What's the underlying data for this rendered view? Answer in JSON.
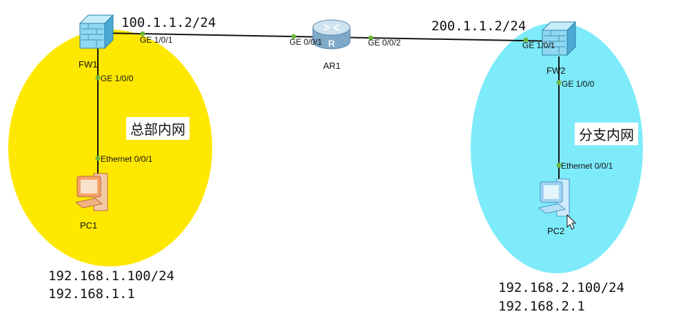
{
  "colors": {
    "hq_zone": "#FFE800",
    "branch_zone": "#7DEBFA",
    "link": "#111111",
    "port_dot": "#6BB83A",
    "firewall_fill": "#8FD8F2",
    "router_fill": "#A9C8E0",
    "pc1_fill": "#F4A36A",
    "pc2_fill": "#9ED3F2"
  },
  "devices": {
    "fw1": {
      "name": "FW1",
      "icon": "firewall-icon"
    },
    "fw2": {
      "name": "FW2",
      "icon": "firewall-icon"
    },
    "ar1": {
      "name": "AR1",
      "icon": "router-icon"
    },
    "pc1": {
      "name": "PC1",
      "icon": "pc-icon"
    },
    "pc2": {
      "name": "PC2",
      "icon": "pc-icon"
    }
  },
  "ports": {
    "fw1_ge101": "GE 1/0/1",
    "fw1_ge100": "GE 1/0/0",
    "ar1_ge001": "GE 0/0/1",
    "ar1_ge002": "GE 0/0/2",
    "fw2_ge101": "GE 1/0/1",
    "fw2_ge100": "GE 1/0/0",
    "pc1_eth": "Ethernet 0/0/1",
    "pc2_eth": "Ethernet 0/0/1"
  },
  "addresses": {
    "fw1_wan": "100.1.1.2/24",
    "fw2_wan": "200.1.1.2/24",
    "pc1_ip": "192.168.1.100/24",
    "pc1_gw": "192.168.1.1",
    "pc2_ip": "192.168.2.100/24",
    "pc2_gw": "192.168.2.1"
  },
  "zones": {
    "hq": "总部内网",
    "branch": "分支内网"
  }
}
